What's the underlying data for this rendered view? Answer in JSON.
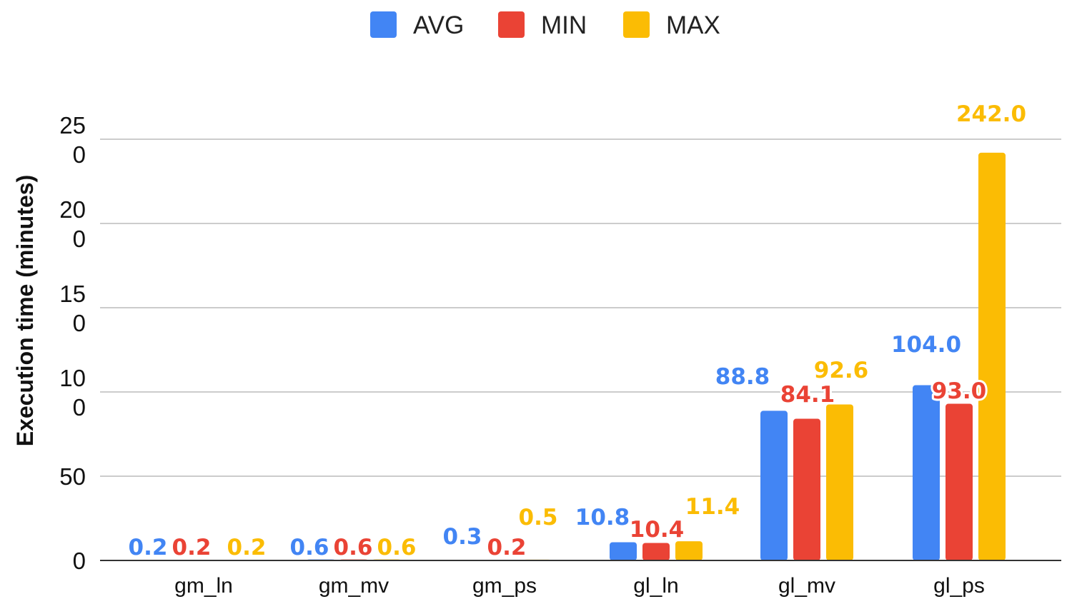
{
  "chart_data": {
    "type": "bar",
    "title": "",
    "xlabel": "",
    "ylabel": "Execution time (minutes)",
    "ylim": [
      0,
      250
    ],
    "yticks": [
      {
        "value": 0,
        "label": [
          "0"
        ]
      },
      {
        "value": 50,
        "label": [
          "50"
        ]
      },
      {
        "value": 100,
        "label": [
          "10",
          "0"
        ]
      },
      {
        "value": 150,
        "label": [
          "15",
          "0"
        ]
      },
      {
        "value": 200,
        "label": [
          "20",
          "0"
        ]
      },
      {
        "value": 250,
        "label": [
          "25",
          "0"
        ]
      }
    ],
    "grid": true,
    "legend_position": "top-center",
    "categories": [
      "gm_ln",
      "gm_mv",
      "gm_ps",
      "gl_ln",
      "gl_mv",
      "gl_ps"
    ],
    "series": [
      {
        "name": "AVG",
        "color": "#4285f4",
        "values": [
          0.2,
          0.6,
          0.3,
          10.8,
          88.8,
          104.0
        ],
        "labels": [
          "0.2",
          "0.6",
          "0.3",
          "10.8",
          "88.8",
          "104.0"
        ]
      },
      {
        "name": "MIN",
        "color": "#ea4335",
        "values": [
          0.2,
          0.6,
          0.2,
          10.4,
          84.1,
          93.0
        ],
        "labels": [
          "0.2",
          "0.6",
          "0.2",
          "10.4",
          "84.1",
          "93.0"
        ]
      },
      {
        "name": "MAX",
        "color": "#fbbc04",
        "values": [
          0.2,
          0.6,
          0.5,
          11.4,
          92.6,
          242.0
        ],
        "labels": [
          "0.2",
          "0.6",
          "0.5",
          "11.4",
          "92.6",
          "242.0"
        ]
      }
    ]
  }
}
